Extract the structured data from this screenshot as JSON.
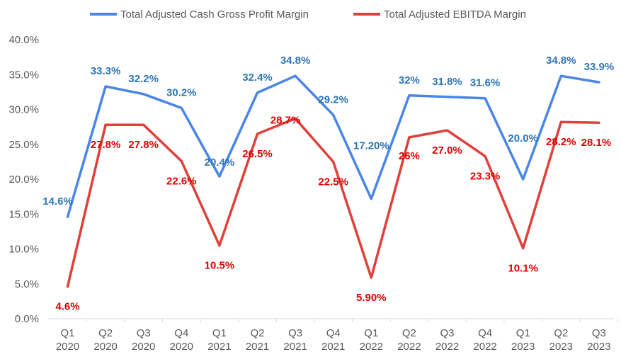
{
  "chart_data": {
    "type": "line",
    "title": "",
    "xlabel": "",
    "ylabel": "",
    "ylim": [
      0,
      40
    ],
    "y_ticks": [
      "0.0%",
      "5.0%",
      "10.0%",
      "15.0%",
      "20.0%",
      "25.0%",
      "30.0%",
      "35.0%",
      "40.0%"
    ],
    "grid": false,
    "legend_position": "top",
    "categories": [
      [
        "Q1",
        "2020"
      ],
      [
        "Q2",
        "2020"
      ],
      [
        "Q3",
        "2020"
      ],
      [
        "Q4",
        "2020"
      ],
      [
        "Q1",
        "2021"
      ],
      [
        "Q2",
        "2021"
      ],
      [
        "Q3",
        "2021"
      ],
      [
        "Q4",
        "2021"
      ],
      [
        "Q1",
        "2022"
      ],
      [
        "Q2",
        "2022"
      ],
      [
        "Q3",
        "2022"
      ],
      [
        "Q4",
        "2022"
      ],
      [
        "Q1",
        "2023"
      ],
      [
        "Q2",
        "2023"
      ],
      [
        "Q3",
        "2023"
      ]
    ],
    "series": [
      {
        "name": "Total Adjusted Cash Gross Profit Margin",
        "color": "#4A86E8",
        "label_color": "#2E75B6",
        "values": [
          14.6,
          33.3,
          32.2,
          30.2,
          20.4,
          32.4,
          34.8,
          29.2,
          17.2,
          32.0,
          31.8,
          31.6,
          20.0,
          34.8,
          33.9
        ],
        "labels": [
          "14.6%",
          "33.3%",
          "32.2%",
          "30.2%",
          "20.4%",
          "32.4%",
          "34.8%",
          "29.2%",
          "17.20%",
          "32%",
          "31.8%",
          "31.6%",
          "20.0%",
          "34.8%",
          "33.9%"
        ]
      },
      {
        "name": "Total Adjusted EBITDA Margin",
        "color": "#E0403A",
        "label_color": "#E00000",
        "values": [
          4.6,
          27.8,
          27.8,
          22.6,
          10.5,
          26.5,
          28.7,
          22.5,
          5.9,
          26.0,
          27.0,
          23.3,
          10.1,
          28.2,
          28.1
        ],
        "labels": [
          "4.6%",
          "27.8%",
          "27.8%",
          "22.6%",
          "10.5%",
          "26.5%",
          "28.7%",
          "22.5%",
          "5.90%",
          "26%",
          "27.0%",
          "23.3%",
          "10.1%",
          "28.2%",
          "28.1%"
        ]
      }
    ]
  }
}
